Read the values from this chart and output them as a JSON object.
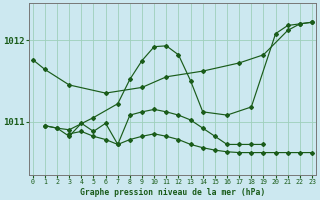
{
  "background_color": "#cce8f0",
  "grid_color": "#9ecfbb",
  "line_color": "#1a5c1a",
  "title": "Graphe pression niveau de la mer (hPa)",
  "xlabel_ticks": [
    0,
    1,
    2,
    3,
    4,
    5,
    6,
    7,
    8,
    9,
    10,
    11,
    12,
    13,
    14,
    15,
    16,
    17,
    18,
    19,
    20,
    21,
    22,
    23
  ],
  "yticks": [
    1011,
    1012
  ],
  "ylim": [
    1010.35,
    1012.45
  ],
  "xlim": [
    -0.3,
    23.3
  ],
  "series": [
    {
      "x": [
        0,
        1,
        3,
        6,
        9,
        11,
        14,
        17,
        19,
        21,
        22,
        23
      ],
      "y": [
        1011.76,
        1011.64,
        1011.45,
        1011.35,
        1011.42,
        1011.55,
        1011.62,
        1011.72,
        1011.82,
        1012.12,
        1012.2,
        1012.22
      ]
    },
    {
      "x": [
        1,
        2,
        3,
        5,
        7,
        8,
        9,
        10,
        11,
        12,
        13,
        14,
        16,
        18,
        20,
        21,
        22,
        23
      ],
      "y": [
        1010.95,
        1010.92,
        1010.9,
        1011.05,
        1011.22,
        1011.52,
        1011.75,
        1011.92,
        1011.93,
        1011.82,
        1011.5,
        1011.12,
        1011.08,
        1011.18,
        1012.08,
        1012.18,
        1012.2,
        1012.22
      ]
    },
    {
      "x": [
        3,
        4,
        5,
        6,
        7,
        8,
        9,
        10,
        11,
        12,
        13,
        14,
        15,
        16,
        17,
        18,
        19,
        20,
        21,
        22,
        23
      ],
      "y": [
        1010.85,
        1010.88,
        1010.82,
        1010.78,
        1010.72,
        1010.78,
        1010.82,
        1010.85,
        1010.82,
        1010.78,
        1010.72,
        1010.68,
        1010.65,
        1010.63,
        1010.62,
        1010.62,
        1010.62,
        1010.62,
        1010.62,
        1010.62,
        1010.62
      ]
    },
    {
      "x": [
        1,
        2,
        3,
        4,
        5,
        6,
        7,
        8,
        9,
        10,
        11,
        12,
        13,
        14,
        15,
        16,
        17,
        18,
        19
      ],
      "y": [
        1010.95,
        1010.92,
        1010.82,
        1010.98,
        1010.88,
        1010.98,
        1010.72,
        1011.08,
        1011.12,
        1011.15,
        1011.12,
        1011.08,
        1011.02,
        1010.92,
        1010.82,
        1010.72,
        1010.72,
        1010.72,
        1010.72
      ]
    }
  ]
}
